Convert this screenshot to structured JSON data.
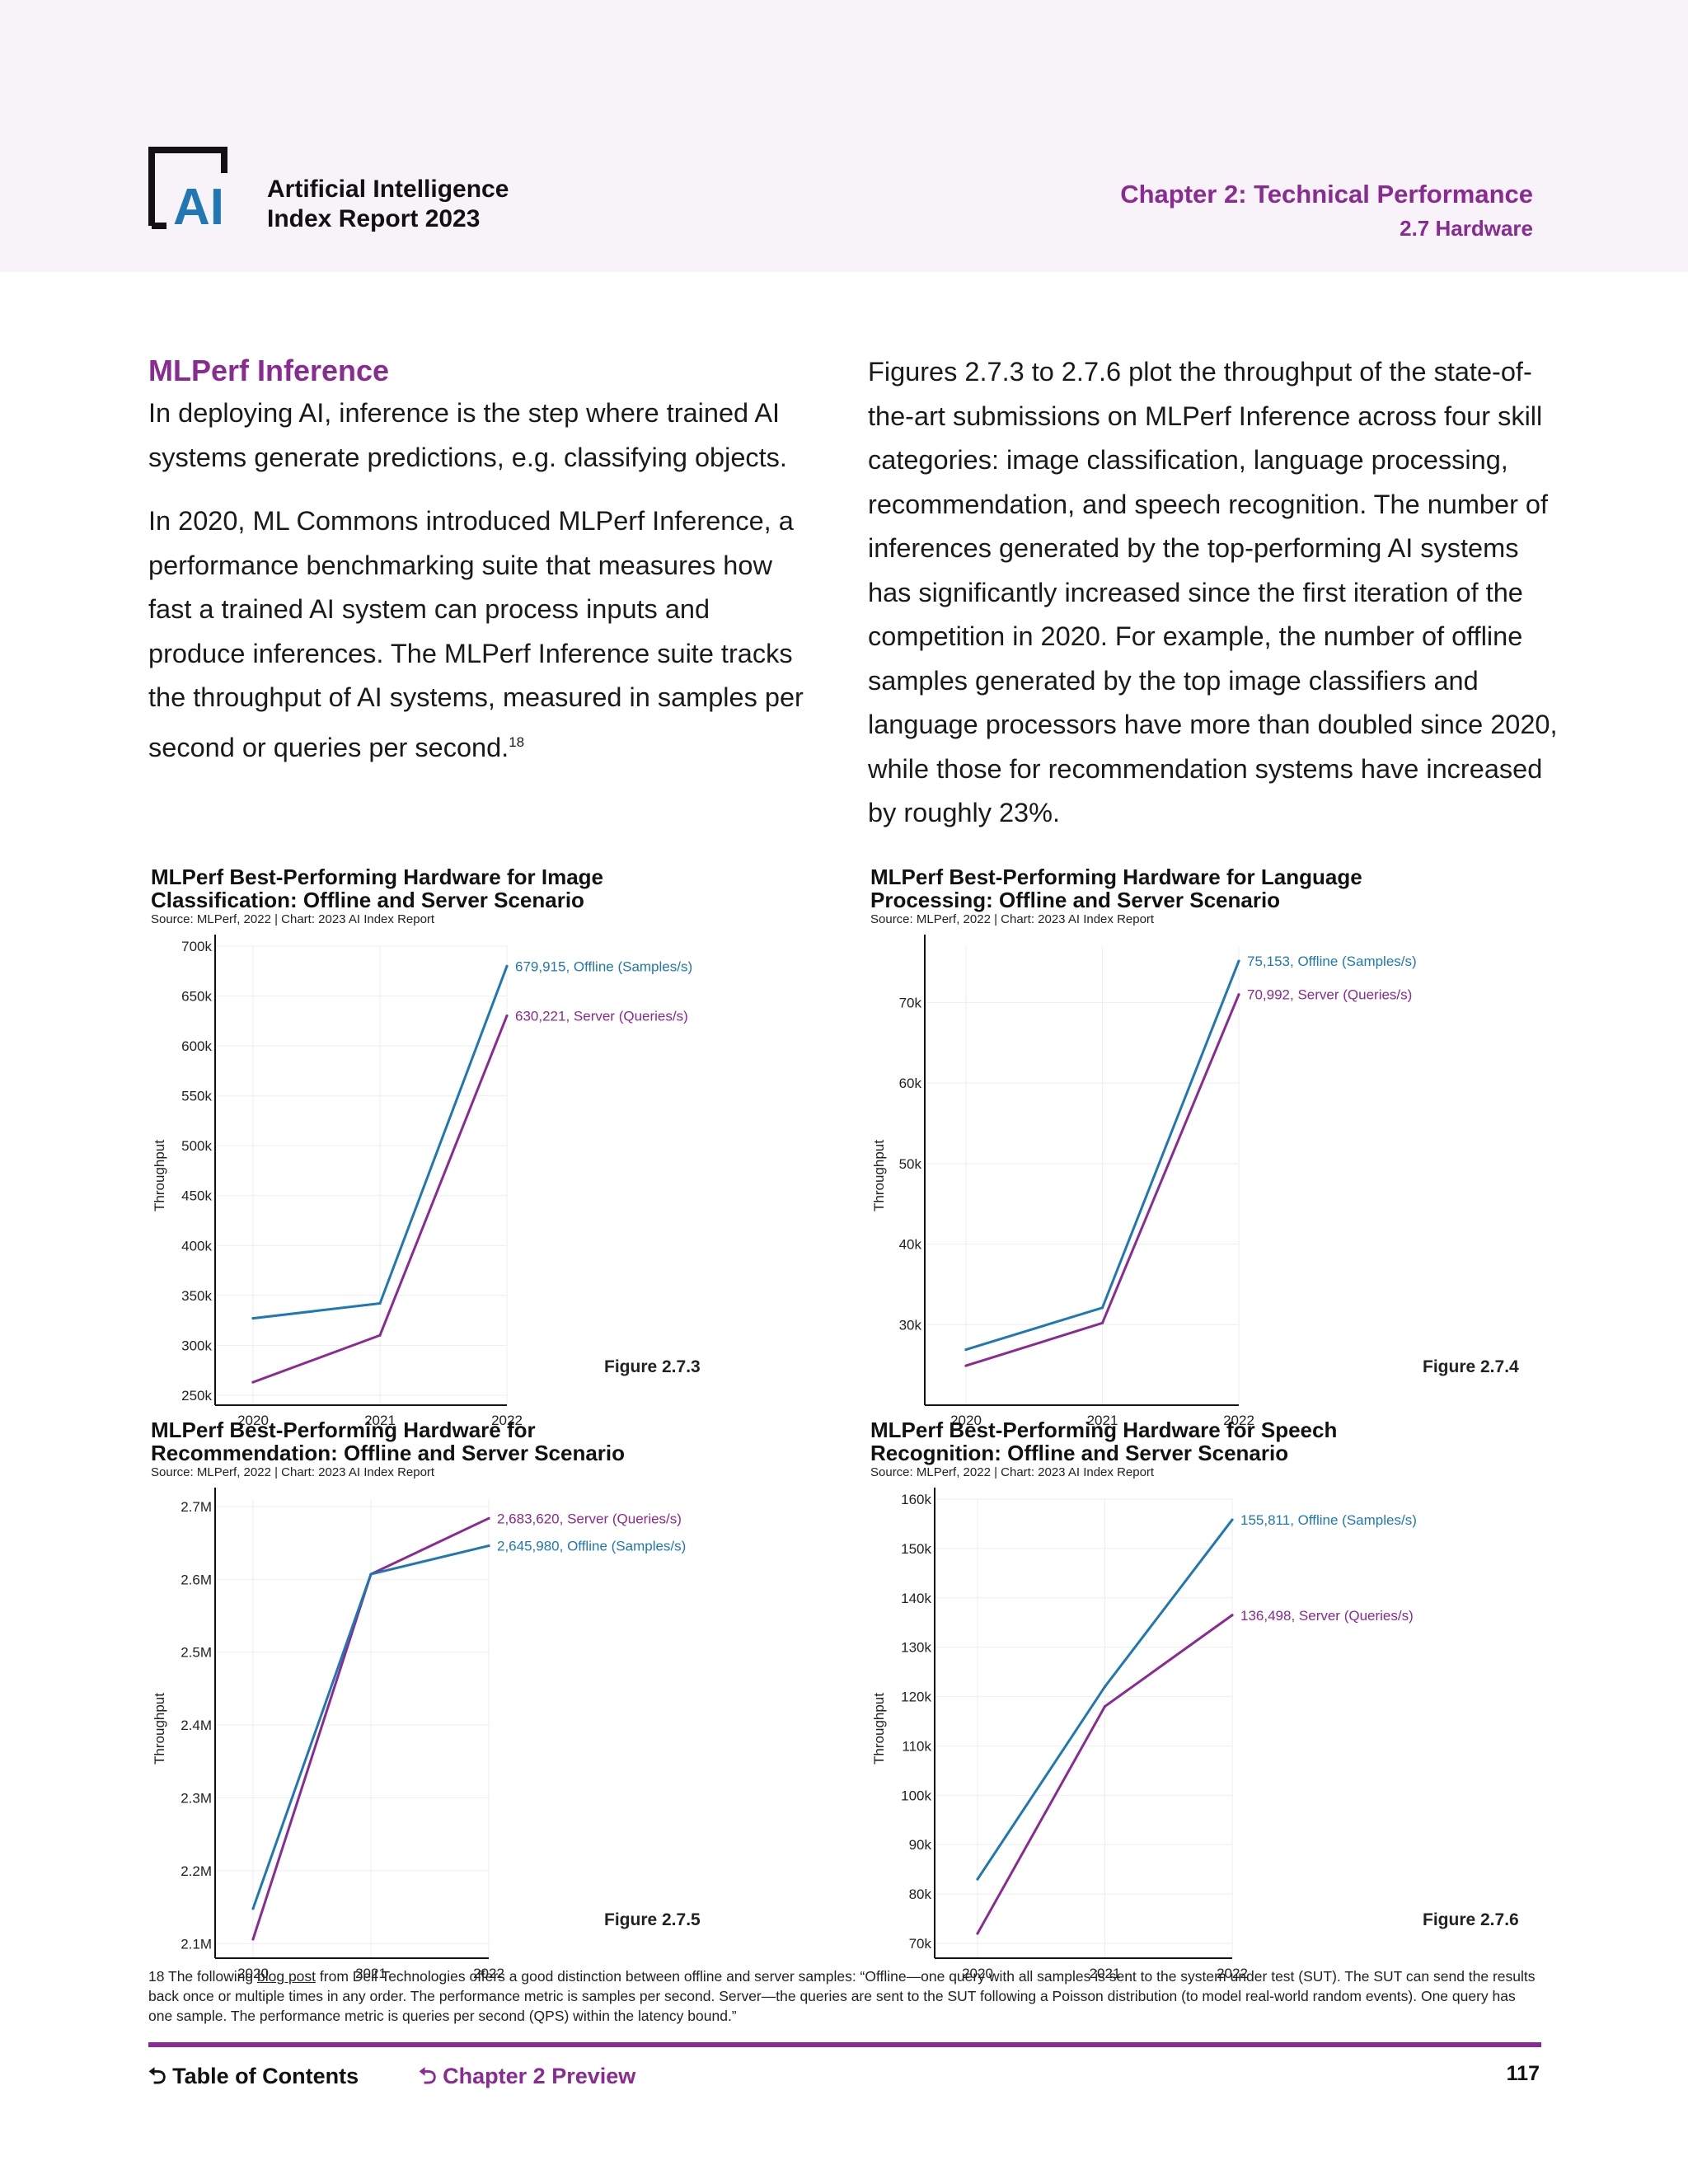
{
  "header": {
    "brand_line1": "Artificial Intelligence",
    "brand_line2": "Index Report 2023",
    "logo_text": "AI",
    "chapter": "Chapter 2: Technical Performance",
    "section": "2.7 Hardware"
  },
  "left_col": {
    "title": "MLPerf Inference",
    "p1": "In deploying AI, inference is the step where trained AI systems generate predictions, e.g. classifying objects.",
    "p2": "In 2020, ML Commons introduced MLPerf Inference, a performance benchmarking suite that measures how fast a trained AI system can process inputs and produce inferences. The MLPerf Inference suite tracks the throughput of AI systems, measured in samples per second or queries per second.",
    "p2_sup": "18"
  },
  "right_col": {
    "p1": "Figures 2.7.3 to 2.7.6 plot the throughput of the state-of-the-art submissions on MLPerf Inference across four skill categories: image classification, language processing, recommendation, and speech recognition. The number of inferences generated by the top-performing AI systems has significantly increased since the first iteration of the competition in 2020. For example, the number of offline samples generated by the top image classifiers and language processors have more than doubled since 2020, while those for recommendation systems have increased by roughly 23%."
  },
  "colors": {
    "offline": "#1f77b4",
    "server": "#8a2a93",
    "accent": "#8a2a93"
  },
  "chart_data": [
    {
      "type": "line",
      "title_line1": "MLPerf Best-Performing Hardware for Image",
      "title_line2": "Classification: Offline and Server Scenario",
      "source": "Source: MLPerf, 2022 | Chart: 2023 AI Index Report",
      "figure": "Figure 2.7.3",
      "ylabel": "Throughput",
      "x": [
        "2020",
        "2021",
        "2022"
      ],
      "ylim": [
        240000,
        700000
      ],
      "yticks": [
        250000,
        300000,
        350000,
        400000,
        450000,
        500000,
        550000,
        600000,
        650000,
        700000
      ],
      "ytick_labels": [
        "250k",
        "300k",
        "350k",
        "400k",
        "450k",
        "500k",
        "550k",
        "600k",
        "650k",
        "700k"
      ],
      "series": [
        {
          "name": "Offline (Samples/s)",
          "values": [
            327000,
            342000,
            679915
          ],
          "end_label": "679,915, Offline (Samples/s)",
          "color": "#1f77b4"
        },
        {
          "name": "Server (Queries/s)",
          "values": [
            263000,
            310000,
            630221
          ],
          "end_label": "630,221, Server (Queries/s)",
          "color": "#8a2a93"
        }
      ]
    },
    {
      "type": "line",
      "title_line1": "MLPerf Best-Performing Hardware for Language",
      "title_line2": "Processing: Offline and Server Scenario",
      "source": "Source: MLPerf, 2022 | Chart: 2023 AI Index Report",
      "figure": "Figure 2.7.4",
      "ylabel": "Throughput",
      "x": [
        "2020",
        "2021",
        "2022"
      ],
      "ylim": [
        20000,
        77000
      ],
      "yticks": [
        30000,
        40000,
        50000,
        60000,
        70000
      ],
      "ytick_labels": [
        "30k",
        "40k",
        "50k",
        "60k",
        "70k"
      ],
      "series": [
        {
          "name": "Offline (Samples/s)",
          "values": [
            26900,
            32100,
            75153
          ],
          "end_label": "75,153, Offline (Samples/s)",
          "color": "#1f77b4"
        },
        {
          "name": "Server (Queries/s)",
          "values": [
            24900,
            30200,
            70992
          ],
          "end_label": "70,992, Server (Queries/s)",
          "color": "#8a2a93"
        }
      ]
    },
    {
      "type": "line",
      "title_line1": "MLPerf Best-Performing Hardware for",
      "title_line2": "Recommendation: Offline and Server Scenario",
      "source": "Source: MLPerf, 2022 | Chart: 2023 AI Index Report",
      "figure": "Figure 2.7.5",
      "ylabel": "Throughput",
      "x": [
        "2020",
        "2021",
        "2022"
      ],
      "ylim": [
        2080000,
        2710000
      ],
      "yticks": [
        2100000,
        2200000,
        2300000,
        2400000,
        2500000,
        2600000,
        2700000
      ],
      "ytick_labels": [
        "2.1M",
        "2.2M",
        "2.3M",
        "2.4M",
        "2.5M",
        "2.6M",
        "2.7M"
      ],
      "series": [
        {
          "name": "Server (Queries/s)",
          "values": [
            2106000,
            2607000,
            2683620
          ],
          "end_label": "2,683,620, Server (Queries/s)",
          "color": "#8a2a93"
        },
        {
          "name": "Offline (Samples/s)",
          "values": [
            2148000,
            2607000,
            2645980
          ],
          "end_label": "2,645,980, Offline (Samples/s)",
          "color": "#1f77b4"
        }
      ]
    },
    {
      "type": "line",
      "title_line1": "MLPerf Best-Performing Hardware for Speech",
      "title_line2": "Recognition: Offline and Server Scenario",
      "source": "Source: MLPerf, 2022 | Chart: 2023 AI Index Report",
      "figure": "Figure 2.7.6",
      "ylabel": "Throughput",
      "x": [
        "2020",
        "2021",
        "2022"
      ],
      "ylim": [
        67000,
        160000
      ],
      "yticks": [
        70000,
        80000,
        90000,
        100000,
        110000,
        120000,
        130000,
        140000,
        150000,
        160000
      ],
      "ytick_labels": [
        "70k",
        "80k",
        "90k",
        "100k",
        "110k",
        "120k",
        "130k",
        "140k",
        "150k",
        "160k"
      ],
      "series": [
        {
          "name": "Offline (Samples/s)",
          "values": [
            83000,
            122000,
            155811
          ],
          "end_label": "155,811, Offline (Samples/s)",
          "color": "#1f77b4"
        },
        {
          "name": "Server (Queries/s)",
          "values": [
            72000,
            118000,
            136498
          ],
          "end_label": "136,498, Server (Queries/s)",
          "color": "#8a2a93"
        }
      ]
    }
  ],
  "footnote": {
    "prefix": "18 The following ",
    "link": "blog post",
    "rest": " from Dell Technologies offers a good distinction between offline and server samples: “Offline—one query with all samples is sent to the system under test (SUT). The SUT can send the results back once or multiple times in any order. The performance metric is samples per second. Server—the queries are sent to the SUT following a Poisson distribution (to model real-world random events). One query has one sample. The performance metric is queries per second (QPS) within the latency bound.”"
  },
  "footer": {
    "toc": "Table of Contents",
    "chapter_preview": "Chapter 2 Preview",
    "page": "117"
  }
}
